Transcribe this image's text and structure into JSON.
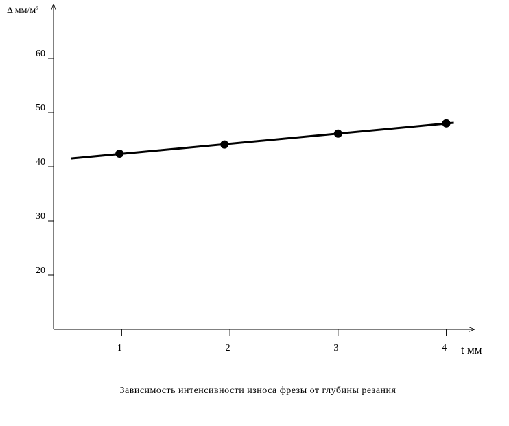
{
  "chart_data": {
    "type": "scatter",
    "y_label": "Δ мм/м²",
    "x_label": "t мм",
    "caption": "Зависимость интенсивности износа фрезы от глубины резания",
    "x": [
      0.98,
      1.95,
      3,
      4
    ],
    "values": [
      42.4,
      44.1,
      46.1,
      48.0
    ],
    "color": "#000000",
    "trend": {
      "x": [
        0.53,
        4.07
      ],
      "values": [
        41.5,
        48.1
      ],
      "color": "#000000"
    },
    "xlim": [
      0.37,
      4.25
    ],
    "xticks": [
      1,
      2,
      3,
      4
    ],
    "ylim": [
      10,
      70
    ],
    "yticks": [
      20,
      30,
      40,
      50,
      60
    ]
  }
}
